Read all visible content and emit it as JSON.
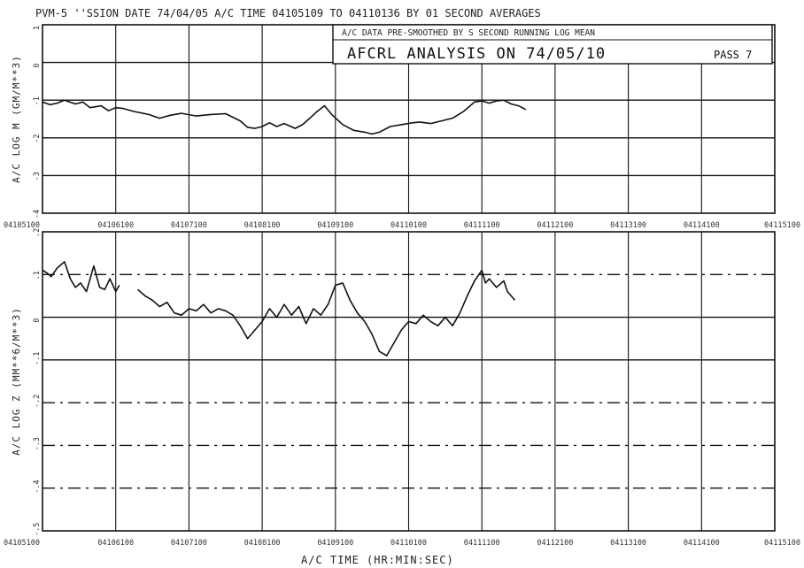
{
  "header": {
    "line": "PVM-5 ''SSION DATE 74/04/05    A/C TIME 04105109 TO 04110136   BY 01 SECOND AVERAGES"
  },
  "annotation_box": {
    "line1": "A/C DATA PRE-SMOOTHED BY  S SECOND RUNNING LOG MEAN",
    "line2": "AFCRL ANALYSIS ON 74/05/10",
    "pass": "PASS 7"
  },
  "x_tick_labels_top": [
    "04105100",
    "04106100",
    "04107100",
    "04108100",
    "04109100",
    "04110100",
    "04111100",
    "04112100",
    "04113100",
    "04114100",
    "04115100"
  ],
  "x_tick_labels_bottom": [
    "04105100",
    "04106100",
    "04107100",
    "04108100",
    "04109100",
    "04110100",
    "04111100",
    "04112100",
    "04113100",
    "04114100",
    "04115100"
  ],
  "chart_data": [
    {
      "type": "line",
      "ylabel": "A/C LOG M  (GM/M**3)",
      "ylim": [
        -4,
        1
      ],
      "y_ticks": [
        1,
        0,
        -1,
        -2,
        -3,
        -4
      ],
      "y_tick_labels": [
        "1",
        "0",
        "-1",
        "-2",
        "-3",
        "-4"
      ],
      "x_range_minutes": [
        0,
        10
      ],
      "grid": true,
      "series": [
        {
          "x": [
            0,
            0.1,
            0.2,
            0.3,
            0.45,
            0.55,
            0.65,
            0.8,
            0.9,
            1.0,
            1.1,
            1.25,
            1.45,
            1.6,
            1.75,
            1.9,
            2.1,
            2.3,
            2.5,
            2.7,
            2.8,
            2.9,
            3.0,
            3.1,
            3.2,
            3.3,
            3.45,
            3.55,
            3.65,
            3.75,
            3.85,
            3.95,
            4.1,
            4.25,
            4.4,
            4.5,
            4.6,
            4.75,
            4.9,
            5.05,
            5.15,
            5.3,
            5.45,
            5.6,
            5.75,
            5.9,
            6.0,
            6.1,
            6.2,
            6.3,
            6.4,
            6.5,
            6.6
          ],
          "y": [
            -1.05,
            -1.12,
            -1.08,
            -1.0,
            -1.1,
            -1.05,
            -1.2,
            -1.15,
            -1.28,
            -1.2,
            -1.22,
            -1.3,
            -1.38,
            -1.48,
            -1.4,
            -1.35,
            -1.42,
            -1.38,
            -1.36,
            -1.55,
            -1.72,
            -1.75,
            -1.7,
            -1.6,
            -1.7,
            -1.62,
            -1.75,
            -1.65,
            -1.48,
            -1.3,
            -1.15,
            -1.38,
            -1.65,
            -1.8,
            -1.85,
            -1.9,
            -1.85,
            -1.7,
            -1.65,
            -1.6,
            -1.58,
            -1.62,
            -1.55,
            -1.48,
            -1.3,
            -1.05,
            -1.02,
            -1.08,
            -1.02,
            -1.0,
            -1.1,
            -1.15,
            -1.25
          ]
        }
      ]
    },
    {
      "type": "line",
      "ylabel": "A/C LOG Z  (MM**6/M**3)",
      "ylim": [
        -5,
        2
      ],
      "y_ticks": [
        2,
        1,
        0,
        -1,
        -2,
        -3,
        -4,
        -5
      ],
      "y_tick_labels": [
        ".2",
        ".1",
        "0",
        "-.1",
        "-.2",
        "-.3",
        "-.4",
        "-.5"
      ],
      "x_range_minutes": [
        0,
        10
      ],
      "grid": true,
      "series": [
        {
          "x": [
            0,
            0.05,
            0.12,
            0.2,
            0.3,
            0.38,
            0.45,
            0.52,
            0.6,
            0.7,
            0.78,
            0.85,
            0.92,
            1.0,
            1.05
          ],
          "y": [
            1.1,
            1.05,
            0.95,
            1.15,
            1.3,
            0.9,
            0.7,
            0.8,
            0.6,
            1.2,
            0.7,
            0.65,
            0.9,
            0.6,
            0.75
          ]
        },
        {
          "x": [
            1.3,
            1.4,
            1.5,
            1.6,
            1.7,
            1.8,
            1.9,
            2.0,
            2.1,
            2.2,
            2.3,
            2.4,
            2.5,
            2.6,
            2.7,
            2.8,
            2.9,
            3.0,
            3.1,
            3.2,
            3.3,
            3.4,
            3.5,
            3.6,
            3.7,
            3.8,
            3.9,
            4.0,
            4.1,
            4.2,
            4.3,
            4.4,
            4.5,
            4.6,
            4.7,
            4.8,
            4.9,
            5.0,
            5.1,
            5.2,
            5.3,
            5.4,
            5.5,
            5.6,
            5.7,
            5.8,
            5.9,
            6.0,
            6.05,
            6.1,
            6.2,
            6.3,
            6.35,
            6.4,
            6.45
          ],
          "y": [
            0.65,
            0.5,
            0.4,
            0.25,
            0.35,
            0.1,
            0.05,
            0.2,
            0.15,
            0.3,
            0.1,
            0.2,
            0.15,
            0.05,
            -0.2,
            -0.5,
            -0.3,
            -0.1,
            0.2,
            0.0,
            0.3,
            0.05,
            0.25,
            -0.15,
            0.2,
            0.05,
            0.3,
            0.75,
            0.8,
            0.4,
            0.1,
            -0.1,
            -0.4,
            -0.8,
            -0.9,
            -0.6,
            -0.3,
            -0.1,
            -0.15,
            0.05,
            -0.1,
            -0.2,
            0.0,
            -0.2,
            0.1,
            0.5,
            0.85,
            1.1,
            0.8,
            0.9,
            0.7,
            0.85,
            0.6,
            0.5,
            0.4
          ]
        }
      ]
    }
  ],
  "xlabel": "A/C TIME  (HR:MIN:SEC)"
}
